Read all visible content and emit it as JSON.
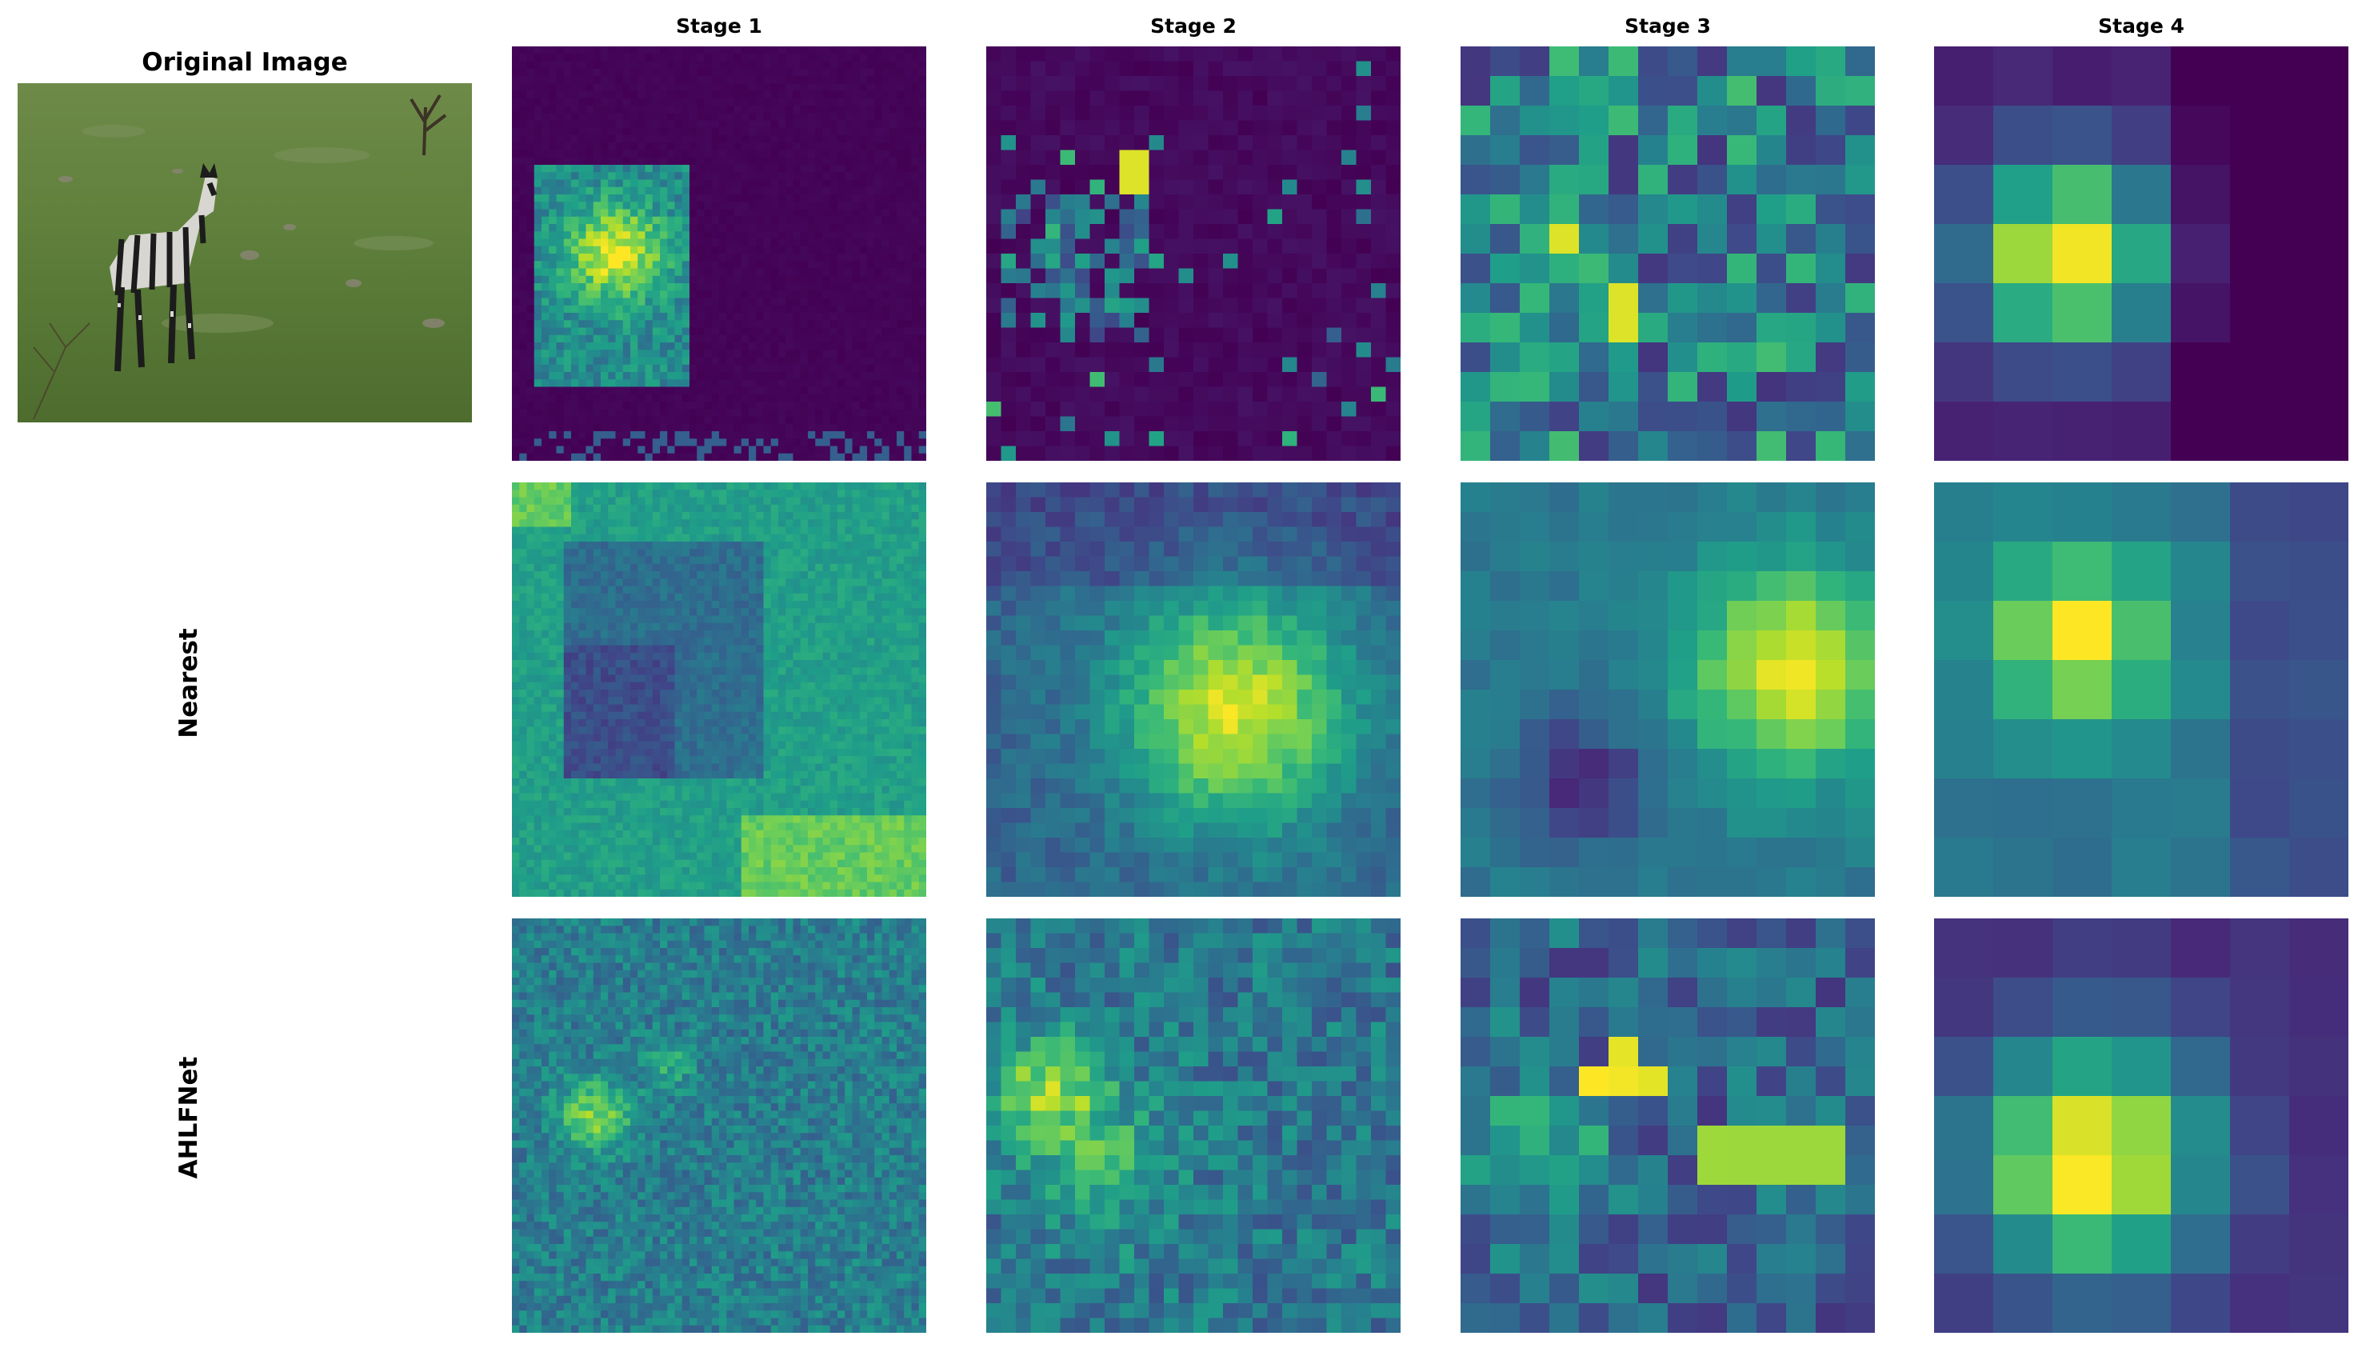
{
  "figure": {
    "original_title": "Original Image",
    "stages": [
      "Stage 1",
      "Stage 2",
      "Stage 3",
      "Stage 4"
    ],
    "rows": [
      "",
      "Nearest",
      "AHLFNet"
    ],
    "colormap": "viridis",
    "colormap_stops": [
      "#440154",
      "#482878",
      "#3e4989",
      "#31688e",
      "#26828e",
      "#1f9e89",
      "#35b779",
      "#6ece58",
      "#b5de2b",
      "#fde725"
    ]
  }
}
